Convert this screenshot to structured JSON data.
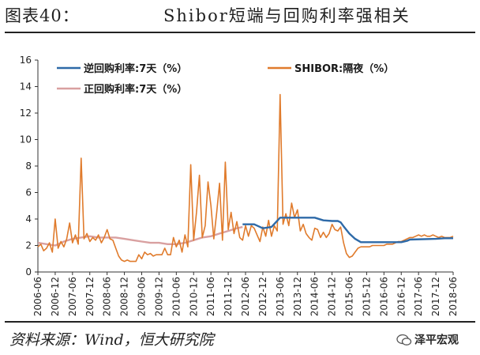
{
  "header": {
    "figure_number": "图表40：",
    "title": "Shibor短端与回购利率强相关"
  },
  "footer": {
    "source": "资料来源：Wind，恒大研究院",
    "watermark": "泽平宏观"
  },
  "colors": {
    "reverse_repo": "#2e6aa8",
    "shibor": "#e07b2c",
    "positive_repo": "#d9a0a0",
    "axis": "#333333"
  },
  "chart_data": {
    "type": "line",
    "xlabel": "",
    "ylabel": "",
    "ylim": [
      0,
      16
    ],
    "yticks": [
      0,
      2,
      4,
      6,
      8,
      10,
      12,
      14,
      16
    ],
    "xlim": [
      "2006-06",
      "2018-06"
    ],
    "xticks": [
      "2006-06",
      "2006-12",
      "2007-06",
      "2007-12",
      "2008-06",
      "2008-12",
      "2009-06",
      "2009-12",
      "2010-06",
      "2010-12",
      "2011-06",
      "2011-12",
      "2012-06",
      "2012-12",
      "2013-06",
      "2013-12",
      "2014-06",
      "2014-12",
      "2015-06",
      "2015-12",
      "2016-06",
      "2016-12",
      "2017-06",
      "2017-12",
      "2018-06"
    ],
    "grid": false,
    "legend": "top",
    "series": [
      {
        "name": "逆回购利率:7天（%）",
        "color": "#2e6aa8",
        "x": [
          "2012-05",
          "2012-09",
          "2012-12",
          "2013-03",
          "2013-06",
          "2013-09",
          "2013-12",
          "2014-03",
          "2014-06",
          "2014-09",
          "2014-12",
          "2015-02",
          "2015-03",
          "2015-04",
          "2015-06",
          "2015-08",
          "2015-10",
          "2015-12",
          "2016-06",
          "2016-12",
          "2017-02",
          "2017-03",
          "2017-12",
          "2018-03",
          "2018-06"
        ],
        "y": [
          3.6,
          3.6,
          3.3,
          3.4,
          4.1,
          4.1,
          4.1,
          4.1,
          4.1,
          3.9,
          3.85,
          3.85,
          3.75,
          3.45,
          2.9,
          2.5,
          2.25,
          2.25,
          2.25,
          2.25,
          2.35,
          2.45,
          2.5,
          2.55,
          2.55
        ]
      },
      {
        "name": "SHIBOR:隔夜（%）",
        "color": "#e07b2c",
        "x": [
          "2006-06",
          "2006-07",
          "2006-08",
          "2006-09",
          "2006-10",
          "2006-11",
          "2006-12",
          "2007-01",
          "2007-02",
          "2007-03",
          "2007-04",
          "2007-05",
          "2007-06",
          "2007-07",
          "2007-08",
          "2007-09",
          "2007-10",
          "2007-11",
          "2007-12",
          "2008-01",
          "2008-02",
          "2008-03",
          "2008-04",
          "2008-05",
          "2008-06",
          "2008-07",
          "2008-08",
          "2008-09",
          "2008-10",
          "2008-11",
          "2008-12",
          "2009-01",
          "2009-02",
          "2009-03",
          "2009-04",
          "2009-05",
          "2009-06",
          "2009-07",
          "2009-08",
          "2009-09",
          "2009-10",
          "2009-11",
          "2009-12",
          "2010-01",
          "2010-02",
          "2010-03",
          "2010-04",
          "2010-05",
          "2010-06",
          "2010-07",
          "2010-08",
          "2010-09",
          "2010-10",
          "2010-11",
          "2010-12",
          "2011-01",
          "2011-02",
          "2011-03",
          "2011-04",
          "2011-05",
          "2011-06",
          "2011-07",
          "2011-08",
          "2011-09",
          "2011-10",
          "2011-11",
          "2011-12",
          "2012-01",
          "2012-02",
          "2012-03",
          "2012-04",
          "2012-05",
          "2012-06",
          "2012-07",
          "2012-08",
          "2012-09",
          "2012-10",
          "2012-11",
          "2012-12",
          "2013-01",
          "2013-02",
          "2013-03",
          "2013-04",
          "2013-05",
          "2013-06",
          "2013-07",
          "2013-08",
          "2013-09",
          "2013-10",
          "2013-11",
          "2013-12",
          "2014-01",
          "2014-02",
          "2014-03",
          "2014-04",
          "2014-05",
          "2014-06",
          "2014-07",
          "2014-08",
          "2014-09",
          "2014-10",
          "2014-11",
          "2014-12",
          "2015-01",
          "2015-02",
          "2015-03",
          "2015-04",
          "2015-05",
          "2015-06",
          "2015-07",
          "2015-08",
          "2015-09",
          "2015-10",
          "2015-11",
          "2015-12",
          "2016-01",
          "2016-02",
          "2016-03",
          "2016-04",
          "2016-05",
          "2016-06",
          "2016-07",
          "2016-08",
          "2016-09",
          "2016-10",
          "2016-11",
          "2016-12",
          "2017-01",
          "2017-02",
          "2017-03",
          "2017-04",
          "2017-05",
          "2017-06",
          "2017-07",
          "2017-08",
          "2017-09",
          "2017-10",
          "2017-11",
          "2017-12",
          "2018-01",
          "2018-02",
          "2018-03",
          "2018-04",
          "2018-05",
          "2018-06"
        ],
        "y": [
          1.9,
          2.1,
          1.6,
          1.8,
          2.2,
          1.5,
          4.0,
          1.8,
          2.3,
          1.9,
          2.5,
          3.7,
          2.2,
          2.8,
          2.1,
          8.6,
          2.5,
          2.9,
          2.3,
          2.6,
          2.4,
          2.8,
          2.2,
          2.6,
          3.2,
          2.5,
          2.4,
          1.8,
          1.2,
          0.9,
          0.8,
          0.9,
          0.8,
          0.8,
          0.8,
          1.3,
          1.0,
          1.5,
          1.3,
          1.4,
          1.2,
          1.3,
          1.3,
          1.3,
          1.8,
          1.3,
          1.3,
          2.6,
          1.9,
          2.4,
          1.5,
          2.8,
          1.9,
          8.1,
          2.4,
          4.5,
          7.3,
          2.6,
          3.5,
          6.8,
          5.0,
          2.5,
          4.5,
          6.7,
          2.4,
          8.3,
          3.2,
          4.5,
          2.9,
          3.8,
          2.6,
          2.4,
          3.5,
          2.7,
          3.5,
          3.3,
          2.8,
          2.3,
          3.4,
          2.7,
          3.9,
          2.7,
          3.5,
          3.1,
          13.4,
          3.6,
          4.4,
          3.5,
          5.2,
          4.1,
          4.7,
          3.1,
          3.6,
          2.9,
          2.6,
          2.4,
          3.3,
          3.2,
          2.6,
          3.0,
          2.6,
          2.9,
          3.6,
          3.2,
          3.1,
          3.4,
          2.2,
          1.4,
          1.1,
          1.2,
          1.5,
          1.8,
          1.9,
          1.9,
          1.9,
          1.9,
          2.0,
          2.0,
          2.0,
          2.0,
          2.0,
          2.1,
          2.1,
          2.1,
          2.2,
          2.3,
          2.3,
          2.4,
          2.5,
          2.6,
          2.6,
          2.7,
          2.8,
          2.7,
          2.8,
          2.7,
          2.7,
          2.8,
          2.7,
          2.6,
          2.7,
          2.6,
          2.6,
          2.6,
          2.7
        ]
      },
      {
        "name": "正回购利率:7天（%）",
        "color": "#d9a0a0",
        "x": [
          "2006-06",
          "2006-09",
          "2006-12",
          "2007-03",
          "2007-06",
          "2007-09",
          "2007-12",
          "2008-03",
          "2008-06",
          "2008-09",
          "2008-12",
          "2009-03",
          "2009-06",
          "2009-09",
          "2009-12",
          "2010-03",
          "2010-06",
          "2010-09",
          "2010-12",
          "2011-03",
          "2011-06",
          "2011-09",
          "2011-12",
          "2012-03",
          "2012-05"
        ],
        "y": [
          2.2,
          2.1,
          2.0,
          2.3,
          2.5,
          2.6,
          2.7,
          2.6,
          2.6,
          2.6,
          2.5,
          2.4,
          2.3,
          2.2,
          2.2,
          2.1,
          2.1,
          2.2,
          2.4,
          2.6,
          2.7,
          2.9,
          3.1,
          3.3,
          3.4
        ]
      }
    ]
  }
}
